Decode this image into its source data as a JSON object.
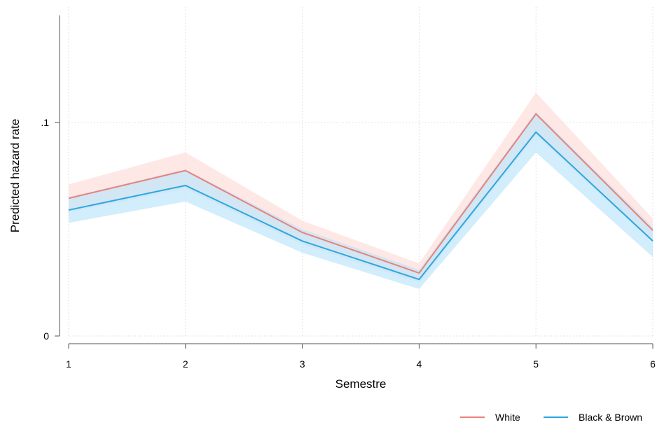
{
  "chart_data": {
    "type": "line",
    "title": "",
    "xlabel": "Semestre",
    "ylabel": "Predicted hazard rate",
    "x": [
      1,
      2,
      3,
      4,
      5,
      6
    ],
    "xlim": [
      1,
      6
    ],
    "ylim": [
      0,
      0.1
    ],
    "xticks": [
      "1",
      "2",
      "3",
      "4",
      "5",
      "6"
    ],
    "yticks": [
      {
        "value": 0,
        "label": "0"
      },
      {
        "value": 0.1,
        "label": ".1"
      }
    ],
    "grid": true,
    "legend_position": "bottom-right",
    "series": [
      {
        "name": "White",
        "color": "#e8827a",
        "band_color": "#fde0de",
        "values": [
          0.0645,
          0.0775,
          0.0485,
          0.0295,
          0.104,
          0.0495
        ],
        "lower": [
          0.058,
          0.069,
          0.043,
          0.025,
          0.094,
          0.044
        ],
        "upper": [
          0.071,
          0.086,
          0.054,
          0.034,
          0.114,
          0.055
        ]
      },
      {
        "name": "Black & Brown",
        "color": "#2aa8e0",
        "band_color": "#bfe6fa",
        "values": [
          0.059,
          0.0705,
          0.0445,
          0.0265,
          0.0955,
          0.0445
        ],
        "lower": [
          0.053,
          0.063,
          0.039,
          0.022,
          0.086,
          0.037
        ],
        "upper": [
          0.065,
          0.078,
          0.05,
          0.031,
          0.105,
          0.051
        ]
      }
    ]
  }
}
